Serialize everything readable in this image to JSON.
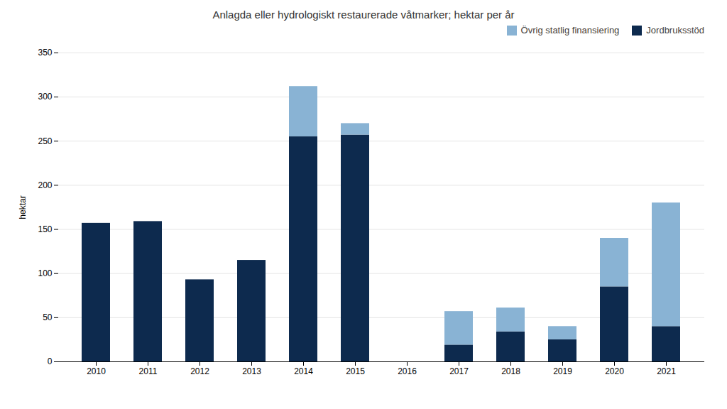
{
  "chart_data": {
    "type": "bar",
    "stacked": true,
    "title": "Anlagda eller hydrologiskt restaurerade våtmarker; hektar per år",
    "ylabel": "hektar",
    "categories": [
      "2010",
      "2011",
      "2012",
      "2013",
      "2014",
      "2015",
      "2016",
      "2017",
      "2018",
      "2019",
      "2020",
      "2021"
    ],
    "series": [
      {
        "name": "Jordbruksstöd",
        "color": "#0d2a4e",
        "values": [
          157,
          159,
          93,
          115,
          255,
          257,
          0,
          19,
          34,
          25,
          85,
          40
        ]
      },
      {
        "name": "Övrig statlig finansiering",
        "color": "#89b3d4",
        "values": [
          0,
          0,
          0,
          0,
          57,
          13,
          0,
          38,
          27,
          15,
          55,
          140
        ]
      }
    ],
    "ylim": [
      0,
      350
    ],
    "yticks": [
      0,
      50,
      100,
      150,
      200,
      250,
      300,
      350
    ],
    "grid": true,
    "legend": "upper right"
  }
}
